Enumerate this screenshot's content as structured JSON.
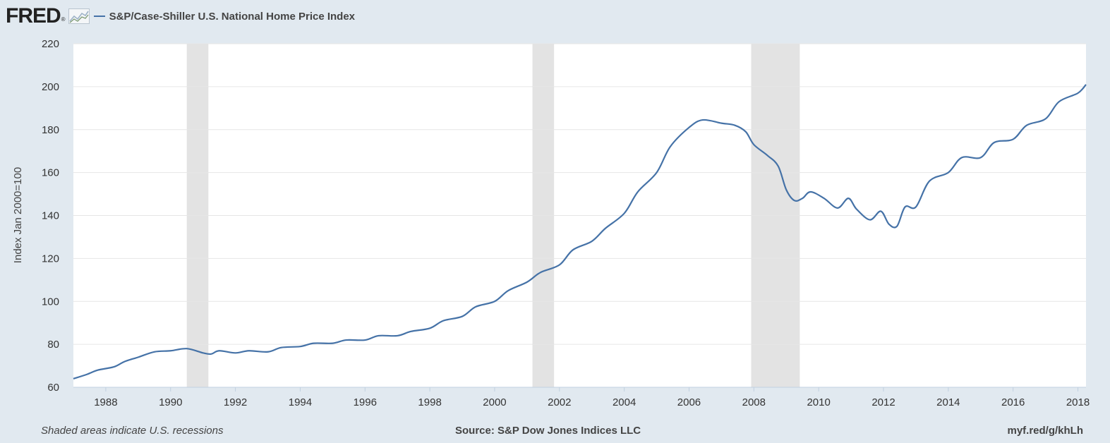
{
  "header": {
    "logo_text": "FRED",
    "logo_mark": "®",
    "legend_label": "S&P/Case-Shiller U.S. National Home Price Index"
  },
  "footer": {
    "left": "Shaded areas indicate U.S. recessions",
    "center": "Source: S&P Dow Jones Indices LLC",
    "right": "myf.red/g/khLh"
  },
  "colors": {
    "background": "#e1e9f0",
    "plot": "#ffffff",
    "series": "#4572a7",
    "recession": "#e3e3e3",
    "grid": "#e6e6e6"
  },
  "chart_data": {
    "type": "line",
    "ylabel": "Index Jan 2000=100",
    "xlabel": "",
    "ylim": [
      60,
      220
    ],
    "xlim": [
      "1987-01",
      "2018-04"
    ],
    "yticks": [
      60,
      80,
      100,
      120,
      140,
      160,
      180,
      200,
      220
    ],
    "xticks": [
      "1988",
      "1990",
      "1992",
      "1994",
      "1996",
      "1998",
      "2000",
      "2002",
      "2004",
      "2006",
      "2008",
      "2010",
      "2012",
      "2014",
      "2016",
      "2018"
    ],
    "grid": "horizontal",
    "recessions": [
      {
        "start": "1990-07",
        "end": "1991-03"
      },
      {
        "start": "2001-03",
        "end": "2001-11"
      },
      {
        "start": "2007-12",
        "end": "2009-06"
      }
    ],
    "series": [
      {
        "name": "S&P/Case-Shiller U.S. National Home Price Index",
        "points": [
          [
            "1987-01",
            64
          ],
          [
            "1987-06",
            66
          ],
          [
            "1987-10",
            68
          ],
          [
            "1988-04",
            69.5
          ],
          [
            "1988-08",
            72
          ],
          [
            "1989-01",
            74
          ],
          [
            "1989-07",
            76.5
          ],
          [
            "1990-01",
            77
          ],
          [
            "1990-07",
            78
          ],
          [
            "1991-01",
            76
          ],
          [
            "1991-04",
            75.5
          ],
          [
            "1991-07",
            77
          ],
          [
            "1992-01",
            76
          ],
          [
            "1992-06",
            77
          ],
          [
            "1993-01",
            76.5
          ],
          [
            "1993-06",
            78.5
          ],
          [
            "1994-01",
            79
          ],
          [
            "1994-06",
            80.5
          ],
          [
            "1995-01",
            80.5
          ],
          [
            "1995-06",
            82
          ],
          [
            "1996-01",
            82
          ],
          [
            "1996-06",
            84
          ],
          [
            "1997-01",
            84
          ],
          [
            "1997-06",
            86
          ],
          [
            "1998-01",
            87.5
          ],
          [
            "1998-06",
            91
          ],
          [
            "1999-01",
            93
          ],
          [
            "1999-06",
            97.5
          ],
          [
            "2000-01",
            100
          ],
          [
            "2000-06",
            105
          ],
          [
            "2001-01",
            109
          ],
          [
            "2001-06",
            113.5
          ],
          [
            "2002-01",
            117
          ],
          [
            "2002-06",
            124
          ],
          [
            "2003-01",
            128
          ],
          [
            "2003-06",
            134
          ],
          [
            "2004-01",
            141
          ],
          [
            "2004-06",
            151
          ],
          [
            "2005-01",
            160
          ],
          [
            "2005-06",
            172
          ],
          [
            "2006-01",
            181
          ],
          [
            "2006-06",
            184.5
          ],
          [
            "2007-01",
            183
          ],
          [
            "2007-06",
            182
          ],
          [
            "2007-10",
            179
          ],
          [
            "2008-01",
            173
          ],
          [
            "2008-06",
            168
          ],
          [
            "2008-10",
            163
          ],
          [
            "2009-01",
            152
          ],
          [
            "2009-04",
            147
          ],
          [
            "2009-07",
            148
          ],
          [
            "2009-10",
            151
          ],
          [
            "2010-03",
            148
          ],
          [
            "2010-08",
            143.5
          ],
          [
            "2010-12",
            148
          ],
          [
            "2011-03",
            143
          ],
          [
            "2011-08",
            138
          ],
          [
            "2011-12",
            142
          ],
          [
            "2012-03",
            136
          ],
          [
            "2012-06",
            135
          ],
          [
            "2012-09",
            144
          ],
          [
            "2013-01",
            144
          ],
          [
            "2013-06",
            156
          ],
          [
            "2014-01",
            160
          ],
          [
            "2014-06",
            167
          ],
          [
            "2015-01",
            167
          ],
          [
            "2015-06",
            174
          ],
          [
            "2016-01",
            175.5
          ],
          [
            "2016-06",
            182
          ],
          [
            "2017-01",
            185
          ],
          [
            "2017-06",
            193
          ],
          [
            "2018-01",
            197
          ],
          [
            "2018-04",
            201
          ]
        ]
      }
    ]
  }
}
